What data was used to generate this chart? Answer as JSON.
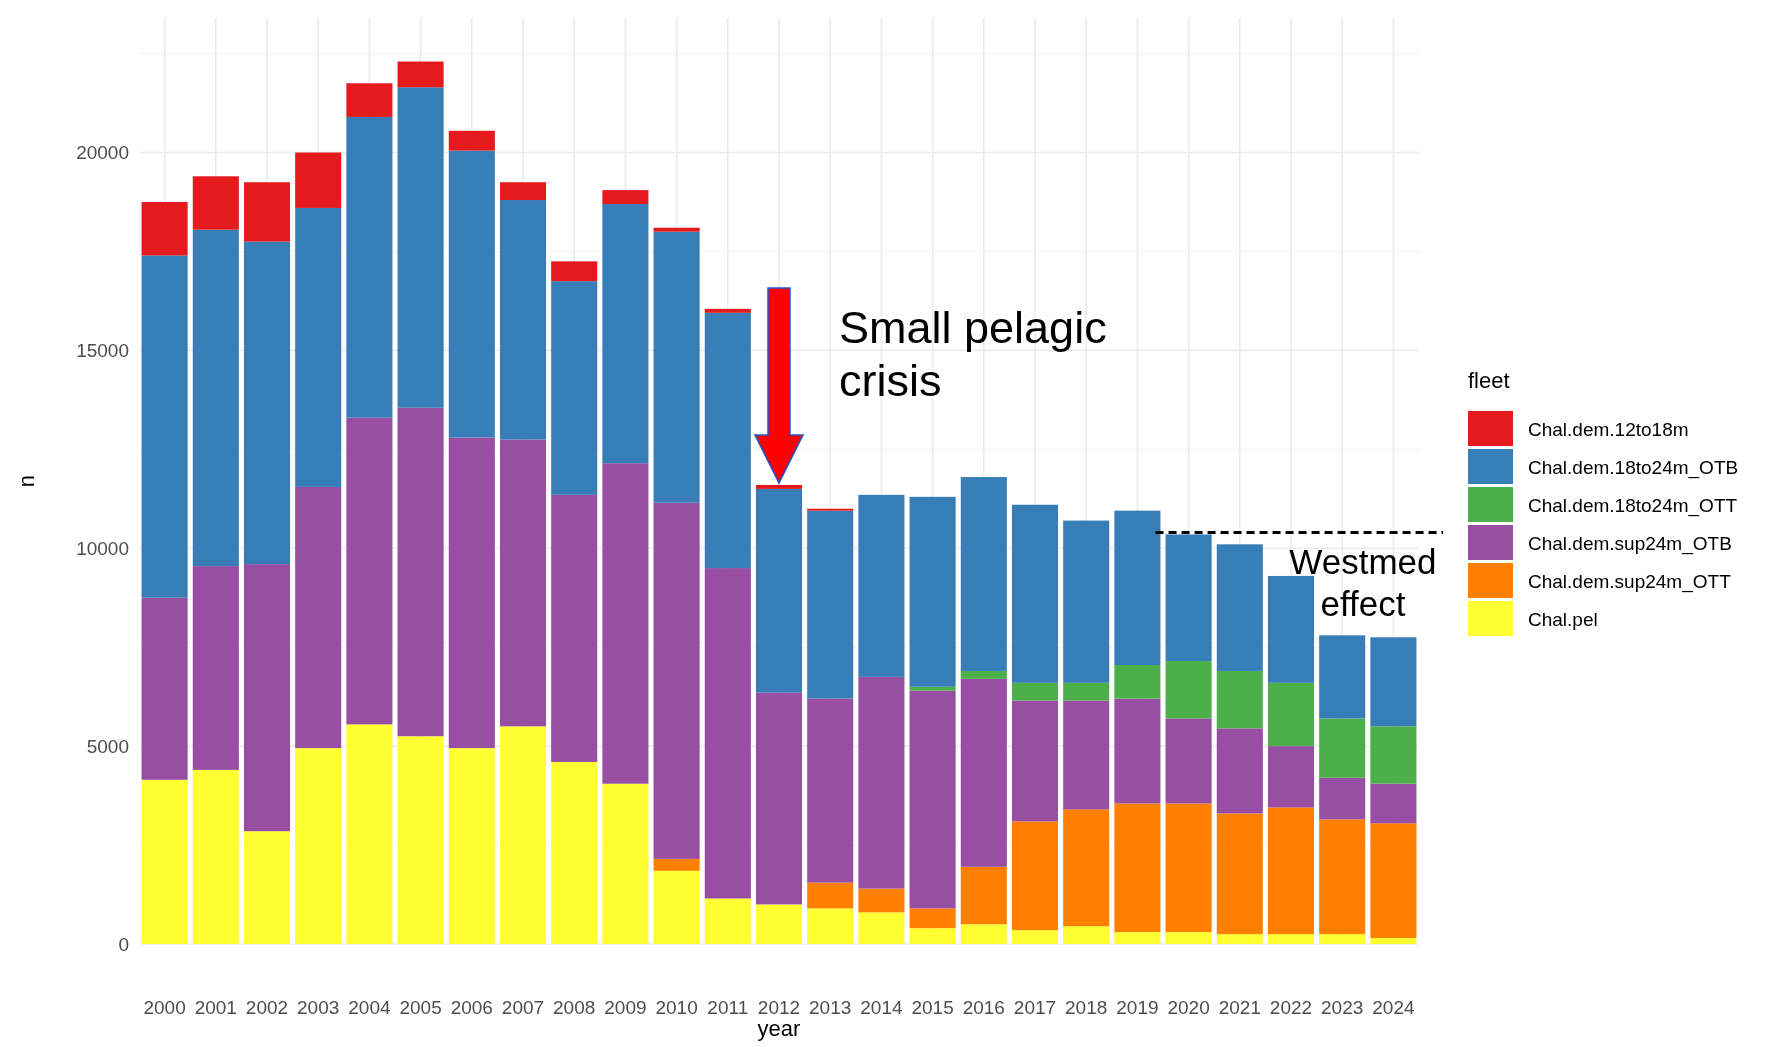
{
  "chart_data": {
    "type": "bar",
    "stacked": true,
    "xlabel": "year",
    "ylabel": "n",
    "legend_title": "fleet",
    "legend": "right",
    "grid": true,
    "categories": [
      "2000",
      "2001",
      "2002",
      "2003",
      "2004",
      "2005",
      "2006",
      "2007",
      "2008",
      "2009",
      "2010",
      "2011",
      "2012",
      "2013",
      "2014",
      "2015",
      "2016",
      "2017",
      "2018",
      "2019",
      "2020",
      "2021",
      "2022",
      "2023",
      "2024"
    ],
    "ylim": [
      0,
      23400
    ],
    "yticks": [
      0,
      5000,
      10000,
      15000,
      20000
    ],
    "series": [
      {
        "name": "Chal.pel",
        "color": "#ffff33",
        "values": [
          4150,
          4400,
          2850,
          4950,
          5550,
          5250,
          4950,
          5500,
          4600,
          4050,
          1850,
          1150,
          1000,
          900,
          800,
          400,
          500,
          350,
          450,
          300,
          300,
          250,
          250,
          250,
          150
        ]
      },
      {
        "name": "Chal.dem.sup24m_OTT",
        "color": "#ff7f00",
        "values": [
          0,
          0,
          0,
          0,
          0,
          0,
          0,
          0,
          0,
          0,
          300,
          0,
          0,
          650,
          600,
          500,
          1450,
          2750,
          2950,
          3250,
          3250,
          3050,
          3200,
          2900,
          2900
        ]
      },
      {
        "name": "Chal.dem.sup24m_OTB",
        "color": "#984ea3",
        "values": [
          4600,
          5150,
          6750,
          6600,
          7750,
          8300,
          7850,
          7250,
          6750,
          8100,
          9000,
          8350,
          5350,
          4650,
          5350,
          5500,
          4750,
          3050,
          2750,
          2650,
          2150,
          2150,
          1550,
          1050,
          1000
        ]
      },
      {
        "name": "Chal.dem.18to24m_OTT",
        "color": "#4daf4a",
        "values": [
          0,
          0,
          0,
          0,
          0,
          0,
          0,
          0,
          0,
          0,
          0,
          0,
          0,
          0,
          0,
          100,
          200,
          450,
          450,
          850,
          1450,
          1450,
          1600,
          1500,
          1450
        ]
      },
      {
        "name": "Chal.dem.18to24m_OTB",
        "color": "#377eb8",
        "values": [
          8650,
          8500,
          8150,
          7050,
          7600,
          8100,
          7250,
          6050,
          5400,
          6550,
          6850,
          6450,
          5150,
          4750,
          4600,
          4800,
          4900,
          4500,
          4100,
          3900,
          3200,
          3200,
          2700,
          2100,
          2250
        ]
      },
      {
        "name": "Chal.dem.12to18m",
        "color": "#e41a1c",
        "values": [
          1350,
          1350,
          1500,
          1400,
          850,
          650,
          500,
          450,
          500,
          350,
          100,
          100,
          100,
          50,
          0,
          0,
          0,
          0,
          0,
          0,
          0,
          0,
          0,
          0,
          0
        ]
      }
    ],
    "annotations": [
      {
        "text": "Small pelagic crisis",
        "x": "2012",
        "y": 11600
      }
    ],
    "ref_lines": [
      {
        "axis": "y",
        "value": 10400,
        "label": "Westmed effect",
        "line_style": "dashed",
        "color": "#000000"
      }
    ]
  }
}
